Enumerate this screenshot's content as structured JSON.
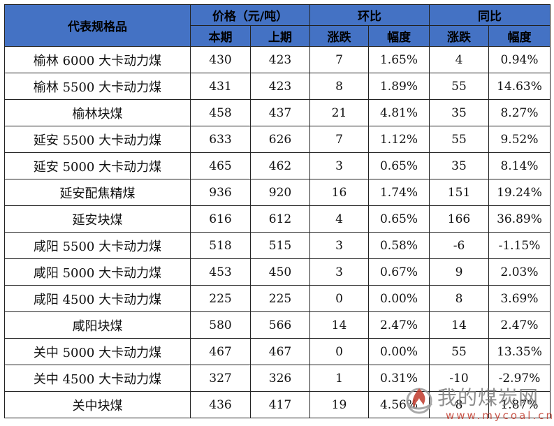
{
  "header": {
    "spec": "代表规格品",
    "price_group": "价格（元/吨）",
    "mom_group": "环比",
    "yoy_group": "同比",
    "sub": [
      "本期",
      "上期",
      "涨跌",
      "幅度",
      "涨跌",
      "幅度"
    ]
  },
  "rows": [
    {
      "name": "榆林 6000 大卡动力煤",
      "cur": "430",
      "prev": "423",
      "mom_chg": "7",
      "mom_pct": "1.65%",
      "yoy_chg": "4",
      "yoy_pct": "0.94%"
    },
    {
      "name": "榆林 5500 大卡动力煤",
      "cur": "431",
      "prev": "423",
      "mom_chg": "8",
      "mom_pct": "1.89%",
      "yoy_chg": "55",
      "yoy_pct": "14.63%"
    },
    {
      "name": "榆林块煤",
      "cur": "458",
      "prev": "437",
      "mom_chg": "21",
      "mom_pct": "4.81%",
      "yoy_chg": "35",
      "yoy_pct": "8.27%"
    },
    {
      "name": "延安 5500 大卡动力煤",
      "cur": "633",
      "prev": "626",
      "mom_chg": "7",
      "mom_pct": "1.12%",
      "yoy_chg": "55",
      "yoy_pct": "9.52%"
    },
    {
      "name": "延安 5000 大卡动力煤",
      "cur": "465",
      "prev": "462",
      "mom_chg": "3",
      "mom_pct": "0.65%",
      "yoy_chg": "35",
      "yoy_pct": "8.14%"
    },
    {
      "name": "延安配焦精煤",
      "cur": "936",
      "prev": "920",
      "mom_chg": "16",
      "mom_pct": "1.74%",
      "yoy_chg": "151",
      "yoy_pct": "19.24%"
    },
    {
      "name": "延安块煤",
      "cur": "616",
      "prev": "612",
      "mom_chg": "4",
      "mom_pct": "0.65%",
      "yoy_chg": "166",
      "yoy_pct": "36.89%"
    },
    {
      "name": "咸阳 5500 大卡动力煤",
      "cur": "518",
      "prev": "515",
      "mom_chg": "3",
      "mom_pct": "0.58%",
      "yoy_chg": "-6",
      "yoy_pct": "-1.15%"
    },
    {
      "name": "咸阳 5000 大卡动力煤",
      "cur": "453",
      "prev": "450",
      "mom_chg": "3",
      "mom_pct": "0.67%",
      "yoy_chg": "9",
      "yoy_pct": "2.03%"
    },
    {
      "name": "咸阳 4500 大卡动力煤",
      "cur": "225",
      "prev": "225",
      "mom_chg": "0",
      "mom_pct": "0.00%",
      "yoy_chg": "8",
      "yoy_pct": "3.69%"
    },
    {
      "name": "咸阳块煤",
      "cur": "580",
      "prev": "566",
      "mom_chg": "14",
      "mom_pct": "2.47%",
      "yoy_chg": "14",
      "yoy_pct": "2.47%"
    },
    {
      "name": "关中 5000 大卡动力煤",
      "cur": "467",
      "prev": "467",
      "mom_chg": "0",
      "mom_pct": "0.00%",
      "yoy_chg": "55",
      "yoy_pct": "13.35%"
    },
    {
      "name": "关中 4500 大卡动力煤",
      "cur": "327",
      "prev": "326",
      "mom_chg": "1",
      "mom_pct": "0.31%",
      "yoy_chg": "-10",
      "yoy_pct": "-2.97%"
    },
    {
      "name": "关中块煤",
      "cur": "436",
      "prev": "417",
      "mom_chg": "19",
      "mom_pct": "4.56%",
      "yoy_chg": "8",
      "yoy_pct": "1.87%"
    }
  ],
  "watermark": {
    "cn": "我的煤炭网",
    "url": "www.mycoal.cn",
    "logo": "flame-logo-icon"
  },
  "colors": {
    "header_bg": "#4472c4",
    "border": "#222222",
    "watermark_red": "#c0392b",
    "watermark_gray": "#7a7a7a"
  }
}
